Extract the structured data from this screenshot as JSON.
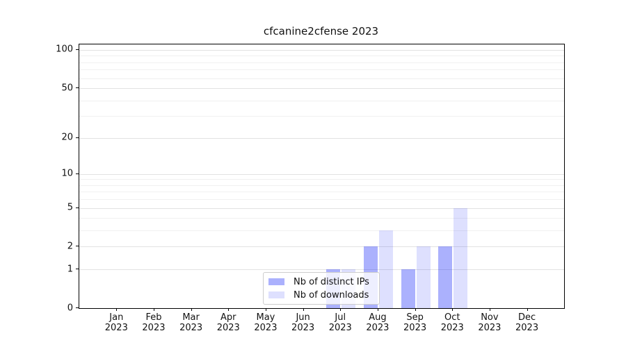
{
  "figure": {
    "title": "cfcanine2cfense 2023",
    "background_color": "#ffffff",
    "frame_color": "#000000",
    "grid_major_color": "#e2e2e2",
    "grid_minor_color": "#f0f0f0"
  },
  "chart_data": {
    "type": "bar",
    "title": "cfcanine2cfense 2023",
    "categories": [
      "Jan",
      "Feb",
      "Mar",
      "Apr",
      "May",
      "Jun",
      "Jul",
      "Aug",
      "Sep",
      "Oct",
      "Nov",
      "Dec"
    ],
    "year": "2023",
    "series": [
      {
        "name": "Nb of distinct IPs",
        "color": "rgba(10,25,250,0.34)",
        "values": [
          0,
          0,
          0,
          0,
          0,
          0,
          1,
          2,
          1,
          2,
          0,
          0
        ]
      },
      {
        "name": "Nb of downloads",
        "color": "rgba(10,25,250,0.135)",
        "values": [
          0,
          0,
          0,
          0,
          0,
          0,
          1,
          3,
          2,
          5,
          0,
          0
        ]
      }
    ],
    "xlabel": "",
    "ylabel": "",
    "yscale": "log1p",
    "ytick_values": [
      0,
      1,
      2,
      5,
      10,
      20,
      50,
      100
    ],
    "grid_major_at": [
      1,
      2,
      5,
      10,
      20,
      50,
      100
    ],
    "grid_minor_at": [
      3,
      4,
      6,
      7,
      8,
      9,
      30,
      40,
      60,
      70,
      80,
      90
    ],
    "ylim": [
      0,
      110
    ],
    "grid": true,
    "legend_position": "lower center"
  }
}
